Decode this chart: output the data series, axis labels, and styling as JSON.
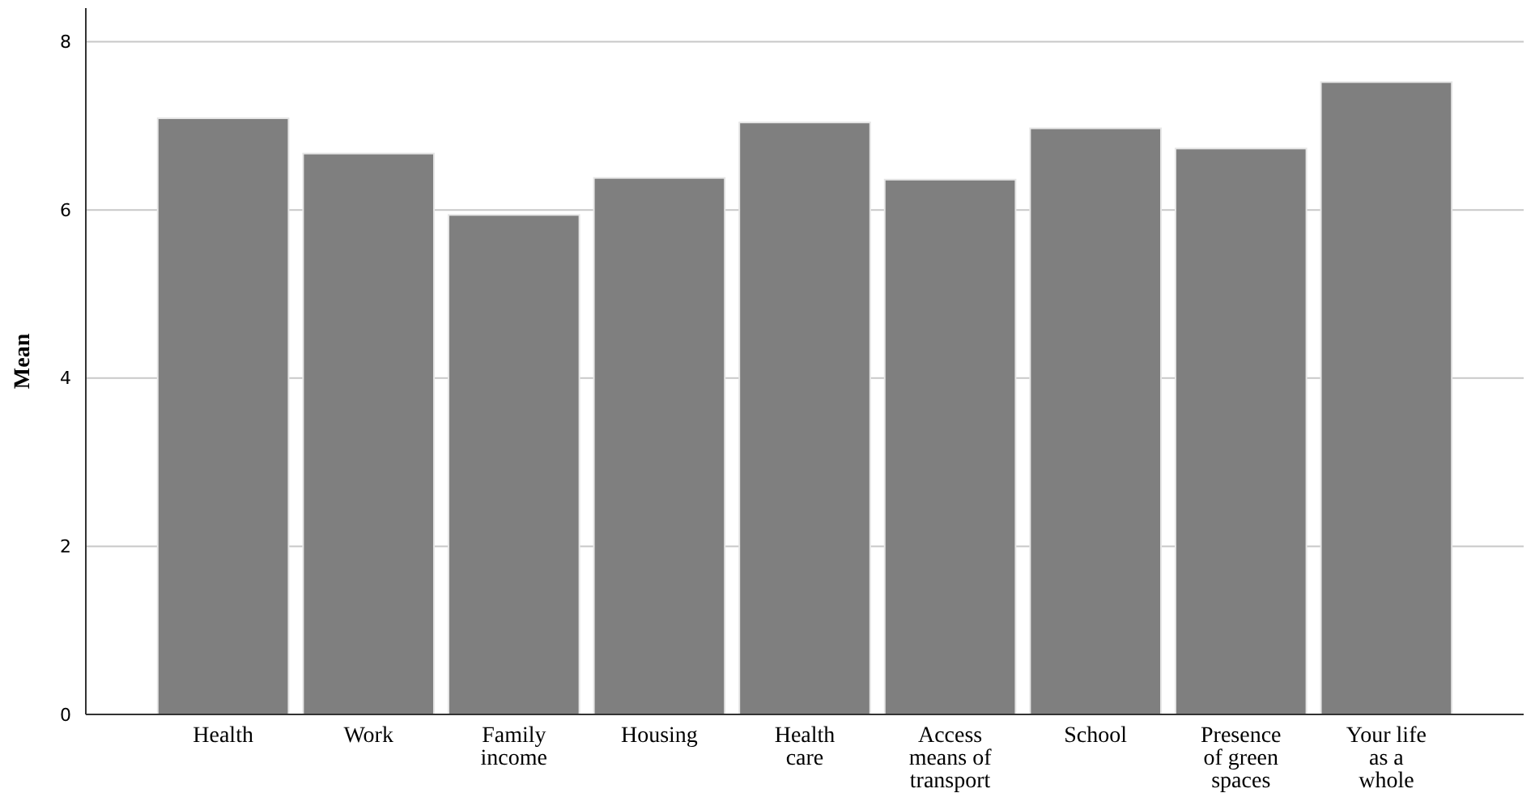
{
  "chart_data": {
    "type": "bar",
    "ylabel": "Mean",
    "categories": [
      "Health",
      "Work",
      "Family income",
      "Housing",
      "Health care",
      "Access means of transport",
      "School",
      "Presence of green spaces",
      "Your life as a whole"
    ],
    "values": [
      7.09,
      6.67,
      5.94,
      6.38,
      7.04,
      6.36,
      6.97,
      6.73,
      7.52
    ],
    "color": "#7f7f7f",
    "ylim": [
      0,
      8.4
    ],
    "yticks": [
      0,
      2,
      4,
      6,
      8
    ],
    "grid": "y"
  }
}
